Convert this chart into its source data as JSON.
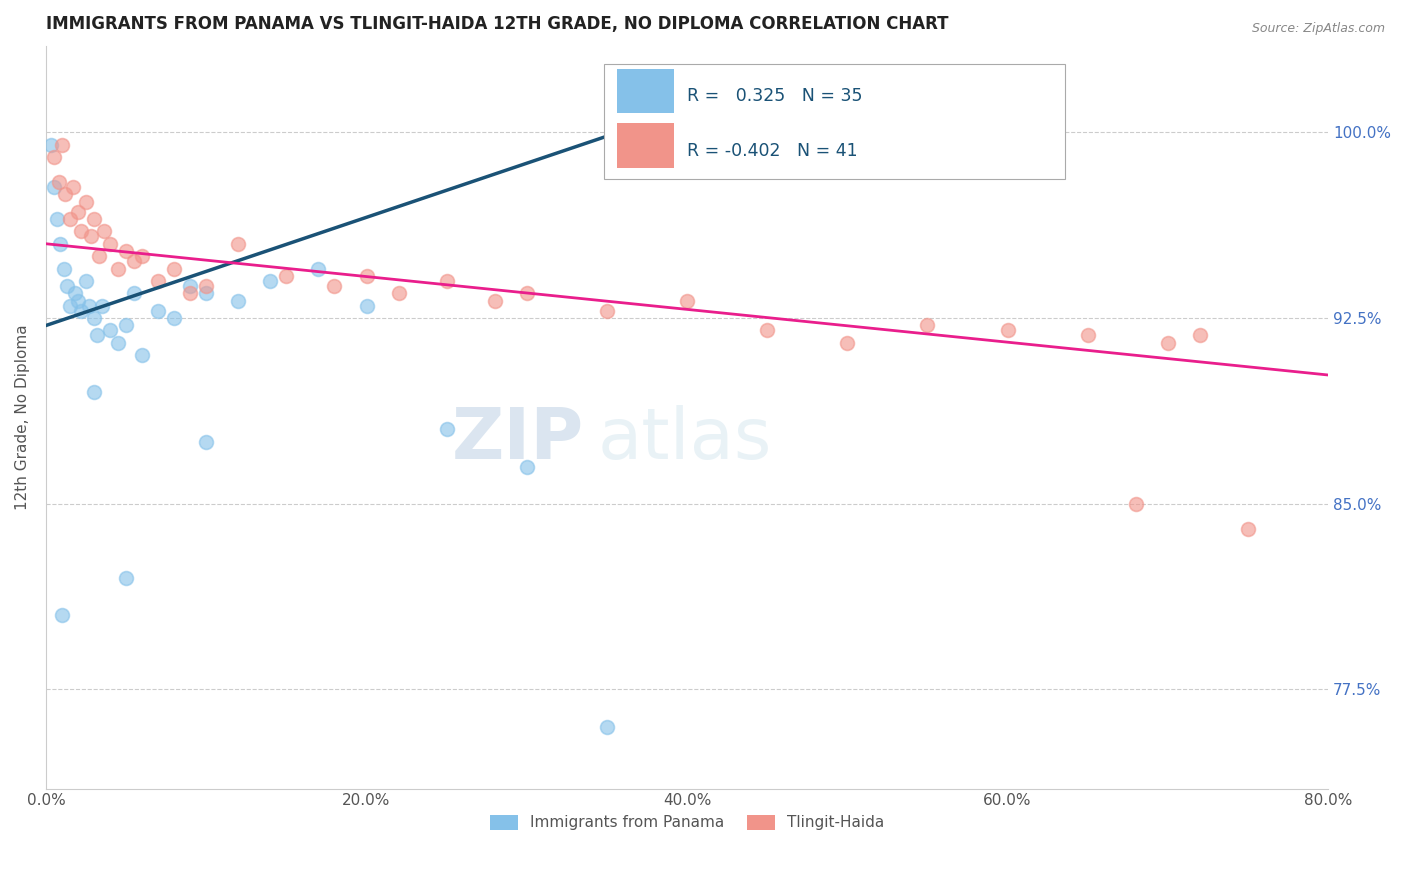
{
  "title": "IMMIGRANTS FROM PANAMA VS TLINGIT-HAIDA 12TH GRADE, NO DIPLOMA CORRELATION CHART",
  "source": "Source: ZipAtlas.com",
  "ylabel": "12th Grade, No Diploma",
  "x_tick_labels": [
    "0.0%",
    "20.0%",
    "40.0%",
    "60.0%",
    "80.0%"
  ],
  "x_tick_values": [
    0.0,
    20.0,
    40.0,
    60.0,
    80.0
  ],
  "y_tick_labels": [
    "77.5%",
    "85.0%",
    "92.5%",
    "100.0%"
  ],
  "y_tick_values": [
    77.5,
    85.0,
    92.5,
    100.0
  ],
  "xlim": [
    0.0,
    80.0
  ],
  "ylim": [
    73.5,
    103.5
  ],
  "legend_label1": "Immigrants from Panama",
  "legend_label2": "Tlingit-Haida",
  "r1": 0.325,
  "n1": 35,
  "r2": -0.402,
  "n2": 41,
  "color_blue": "#85c1e9",
  "color_pink": "#f1948a",
  "color_blue_line": "#1a5276",
  "color_pink_line": "#e91e8c",
  "blue_x": [
    0.3,
    0.5,
    0.7,
    0.9,
    1.1,
    1.3,
    1.5,
    1.8,
    2.0,
    2.2,
    2.5,
    2.7,
    3.0,
    3.2,
    3.5,
    4.0,
    4.5,
    5.0,
    5.5,
    6.0,
    7.0,
    8.0,
    9.0,
    10.0,
    12.0,
    14.0,
    17.0,
    20.0,
    25.0,
    30.0,
    35.0,
    10.0,
    5.0,
    3.0,
    1.0
  ],
  "blue_y": [
    99.5,
    97.8,
    96.5,
    95.5,
    94.5,
    93.8,
    93.0,
    93.5,
    93.2,
    92.8,
    94.0,
    93.0,
    92.5,
    91.8,
    93.0,
    92.0,
    91.5,
    92.2,
    93.5,
    91.0,
    92.8,
    92.5,
    93.8,
    93.5,
    93.2,
    94.0,
    94.5,
    93.0,
    88.0,
    86.5,
    76.0,
    87.5,
    82.0,
    89.5,
    80.5
  ],
  "pink_x": [
    0.5,
    0.8,
    1.0,
    1.2,
    1.5,
    1.7,
    2.0,
    2.2,
    2.5,
    2.8,
    3.0,
    3.3,
    3.6,
    4.0,
    4.5,
    5.0,
    5.5,
    6.0,
    7.0,
    8.0,
    9.0,
    10.0,
    12.0,
    15.0,
    18.0,
    20.0,
    22.0,
    25.0,
    28.0,
    30.0,
    35.0,
    40.0,
    45.0,
    50.0,
    55.0,
    60.0,
    65.0,
    68.0,
    70.0,
    72.0,
    75.0
  ],
  "pink_y": [
    99.0,
    98.0,
    99.5,
    97.5,
    96.5,
    97.8,
    96.8,
    96.0,
    97.2,
    95.8,
    96.5,
    95.0,
    96.0,
    95.5,
    94.5,
    95.2,
    94.8,
    95.0,
    94.0,
    94.5,
    93.5,
    93.8,
    95.5,
    94.2,
    93.8,
    94.2,
    93.5,
    94.0,
    93.2,
    93.5,
    92.8,
    93.2,
    92.0,
    91.5,
    92.2,
    92.0,
    91.8,
    85.0,
    91.5,
    91.8,
    84.0
  ]
}
